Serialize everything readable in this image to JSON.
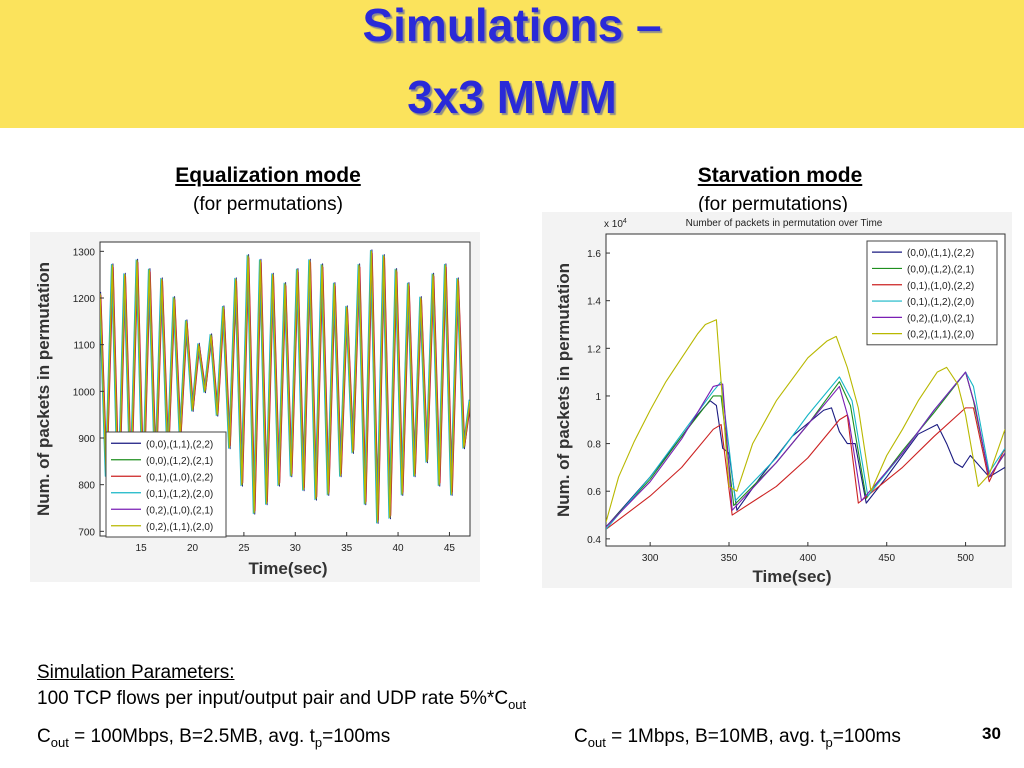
{
  "slide": {
    "title_line1": "Simulations –",
    "title_line2": "3x3 MWM",
    "left_heading": "Equalization mode",
    "left_subheading": "(for permutations)",
    "right_heading": "Starvation mode",
    "right_subheading": "(for permutations)",
    "params_label": "Simulation Parameters:",
    "params_line1_a": "100 TCP flows per input/output pair and UDP rate 5%*C",
    "params_line1_sub": "out",
    "params_left_C": "C",
    "params_left_sub": "out",
    "params_left_mid": " = 100Mbps, B=2.5MB, avg. t",
    "params_left_tsub": "p",
    "params_left_end": "=100ms",
    "params_right_C": "C",
    "params_right_sub": "out",
    "params_right_mid": " = 1Mbps, B=10MB, avg. t",
    "params_right_tsub": "p",
    "params_right_end": "=100ms",
    "page_number": "30",
    "colors": {
      "band": "#fbe35c",
      "title": "#2a2ad8"
    }
  },
  "chart_data": [
    {
      "type": "line",
      "title": "",
      "xlabel": "Time(sec)",
      "ylabel": "Num. of packets in permutation",
      "xlim": [
        11,
        47
      ],
      "ylim": [
        690,
        1320
      ],
      "xticks": [
        15,
        20,
        25,
        30,
        35,
        40,
        45
      ],
      "yticks": [
        700,
        800,
        900,
        1000,
        1100,
        1200,
        1300
      ],
      "grid": false,
      "legend_position": "bottom-left",
      "legend": [
        "(0,0),(1,1),(2,2)",
        "(0,0),(1,2),(2,1)",
        "(0,1),(1,0),(2,2)",
        "(0,1),(1,2),(2,0)",
        "(0,2),(1,0),(2,1)",
        "(0,2),(1,1),(2,0)"
      ],
      "series_colors": [
        "#1a1a80",
        "#1f8f1f",
        "#cc2222",
        "#16b6c6",
        "#7a1fb4",
        "#b8b800"
      ],
      "series_pattern": "all six series overlap, oscillating between ~730 and ~1300 with period ~1.2 s",
      "series": [
        {
          "name": "(0,2),(1,1),(2,0)",
          "x": [
            11,
            11.6,
            12.2,
            12.8,
            13.4,
            14,
            14.6,
            15.2,
            15.8,
            16.4,
            17,
            17.6,
            18.2,
            18.8,
            19.4,
            20,
            20.6,
            21.2,
            21.8,
            22.4,
            23,
            23.6,
            24.2,
            24.8,
            25.4,
            26,
            26.6,
            27.2,
            27.8,
            28.4,
            29,
            29.6,
            30.2,
            30.8,
            31.4,
            32,
            32.6,
            33.2,
            33.8,
            34.4,
            35,
            35.6,
            36.2,
            36.8,
            37.4,
            38,
            38.6,
            39.2,
            39.8,
            40.4,
            41,
            41.6,
            42.2,
            42.8,
            43.4,
            44,
            44.6,
            45.2,
            45.8,
            46.4,
            47
          ],
          "values": [
            1210,
            820,
            1270,
            760,
            1250,
            800,
            1280,
            780,
            1260,
            820,
            1240,
            860,
            1200,
            900,
            1150,
            960,
            1100,
            1000,
            1120,
            950,
            1180,
            880,
            1240,
            800,
            1290,
            740,
            1280,
            760,
            1250,
            800,
            1230,
            820,
            1260,
            790,
            1280,
            770,
            1270,
            780,
            1230,
            820,
            1180,
            870,
            1270,
            760,
            1300,
            720,
            1290,
            730,
            1260,
            780,
            1230,
            820,
            1200,
            850,
            1250,
            800,
            1270,
            780,
            1240,
            880,
            980
          ]
        }
      ]
    },
    {
      "type": "line",
      "title": "Number of packets in permutation over Time",
      "xlabel": "Time(sec)",
      "ylabel": "Num. of packets in permutation",
      "y_multiplier": "x 10^4",
      "xlim": [
        272,
        525
      ],
      "ylim": [
        0.37,
        1.68
      ],
      "xticks": [
        300,
        350,
        400,
        450,
        500
      ],
      "yticks": [
        0.4,
        0.6,
        0.8,
        1,
        1.2,
        1.4,
        1.6
      ],
      "grid": false,
      "legend_position": "top-right",
      "legend": [
        "(0,0),(1,1),(2,2)",
        "(0,0),(1,2),(2,1)",
        "(0,1),(1,0),(2,2)",
        "(0,1),(1,2),(2,0)",
        "(0,2),(1,0),(2,1)",
        "(0,2),(1,1),(2,0)"
      ],
      "series": [
        {
          "name": "(0,0),(1,1),(2,2)",
          "color": "#1a1a80",
          "x": [
            272,
            280,
            300,
            320,
            330,
            338,
            342,
            346,
            350,
            355,
            370,
            390,
            410,
            415,
            420,
            425,
            430,
            437,
            450,
            470,
            482,
            488,
            493,
            498,
            503,
            515,
            525
          ],
          "y": [
            0.45,
            0.51,
            0.66,
            0.83,
            0.92,
            0.98,
            0.96,
            0.78,
            0.76,
            0.52,
            0.66,
            0.83,
            0.94,
            0.95,
            0.85,
            0.8,
            0.8,
            0.55,
            0.66,
            0.84,
            0.88,
            0.8,
            0.72,
            0.7,
            0.75,
            0.66,
            0.7
          ]
        },
        {
          "name": "(0,0),(1,2),(2,1)",
          "color": "#1f8f1f",
          "x": [
            272,
            300,
            320,
            340,
            345,
            353,
            380,
            400,
            420,
            427,
            437,
            460,
            480,
            500,
            505,
            515,
            525
          ],
          "y": [
            0.45,
            0.65,
            0.83,
            1.0,
            1.0,
            0.54,
            0.72,
            0.88,
            1.06,
            0.96,
            0.57,
            0.77,
            0.93,
            1.1,
            0.98,
            0.66,
            0.76
          ]
        },
        {
          "name": "(0,1),(1,0),(2,2)",
          "color": "#cc2222",
          "x": [
            272,
            300,
            320,
            340,
            345,
            352,
            380,
            400,
            420,
            425,
            432,
            460,
            480,
            500,
            505,
            515,
            525
          ],
          "y": [
            0.44,
            0.58,
            0.7,
            0.86,
            0.88,
            0.5,
            0.62,
            0.74,
            0.9,
            0.92,
            0.55,
            0.7,
            0.83,
            0.95,
            0.95,
            0.64,
            0.78
          ]
        },
        {
          "name": "(0,1),(1,2),(2,0)",
          "color": "#16b6c6",
          "x": [
            272,
            300,
            320,
            340,
            345,
            354,
            380,
            400,
            420,
            428,
            438,
            460,
            480,
            500,
            505,
            515,
            525
          ],
          "y": [
            0.44,
            0.66,
            0.84,
            1.02,
            1.06,
            0.56,
            0.74,
            0.92,
            1.08,
            0.98,
            0.58,
            0.76,
            0.94,
            1.1,
            1.04,
            0.68,
            0.78
          ]
        },
        {
          "name": "(0,2),(1,0),(2,1)",
          "color": "#7a1fb4",
          "x": [
            272,
            300,
            320,
            340,
            346,
            352,
            380,
            400,
            420,
            426,
            434,
            460,
            480,
            500,
            506,
            515,
            525
          ],
          "y": [
            0.45,
            0.64,
            0.82,
            1.04,
            1.05,
            0.52,
            0.72,
            0.88,
            1.04,
            0.9,
            0.56,
            0.76,
            0.94,
            1.1,
            0.96,
            0.66,
            0.76
          ]
        },
        {
          "name": "(0,2),(1,1),(2,0)",
          "color": "#b8b800",
          "x": [
            272,
            280,
            290,
            300,
            310,
            320,
            330,
            335,
            342,
            350,
            355,
            365,
            380,
            400,
            412,
            418,
            425,
            432,
            440,
            450,
            460,
            470,
            482,
            488,
            495,
            500,
            508,
            515,
            525
          ],
          "y": [
            0.47,
            0.66,
            0.81,
            0.94,
            1.06,
            1.16,
            1.26,
            1.3,
            1.32,
            0.62,
            0.6,
            0.8,
            0.98,
            1.16,
            1.23,
            1.25,
            1.12,
            0.95,
            0.6,
            0.75,
            0.86,
            0.98,
            1.1,
            1.12,
            1.05,
            0.92,
            0.62,
            0.67,
            0.86
          ]
        }
      ]
    }
  ]
}
